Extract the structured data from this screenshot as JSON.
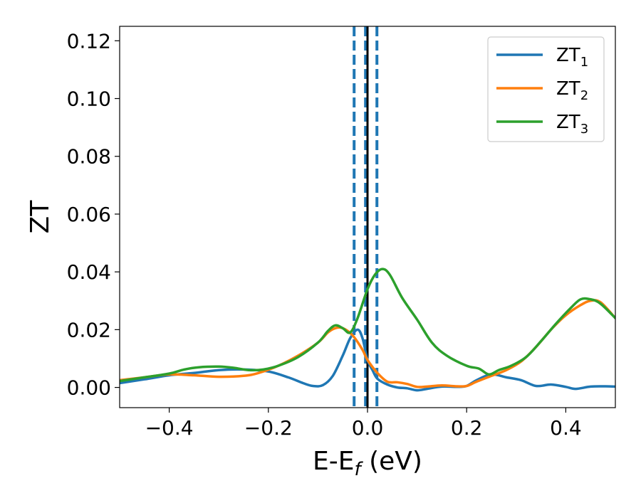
{
  "chart_data": {
    "type": "line",
    "title": "",
    "xlabel_main": "E-E",
    "xlabel_sub": "f",
    "xlabel_unit": " (eV)",
    "ylabel": "ZT",
    "xlim": [
      -0.5,
      0.5
    ],
    "ylim": [
      -0.007,
      0.125
    ],
    "xticks": [
      -0.4,
      -0.2,
      0.0,
      0.2,
      0.4
    ],
    "xtick_labels": [
      "−0.4",
      "−0.2",
      "0.0",
      "0.2",
      "0.4"
    ],
    "yticks": [
      0.0,
      0.02,
      0.04,
      0.06,
      0.08,
      0.1,
      0.12
    ],
    "ytick_labels": [
      "0.00",
      "0.02",
      "0.04",
      "0.06",
      "0.08",
      "0.10",
      "0.12"
    ],
    "grid": false,
    "legend_position": "top-right",
    "vlines": [
      {
        "x": 0.0,
        "style": "solid",
        "color": "#000000"
      },
      {
        "x": -0.027,
        "style": "dashed",
        "color": "#1f77b4"
      },
      {
        "x": -0.004,
        "style": "dashed",
        "color": "#1f77b4"
      },
      {
        "x": 0.019,
        "style": "dashed",
        "color": "#1f77b4"
      }
    ],
    "series": [
      {
        "name": "ZT",
        "subscript": "1",
        "color": "#1f77b4",
        "points": [
          [
            -0.5,
            0.0015
          ],
          [
            -0.45,
            0.0028
          ],
          [
            -0.4,
            0.0042
          ],
          [
            -0.35,
            0.005
          ],
          [
            -0.3,
            0.006
          ],
          [
            -0.25,
            0.0062
          ],
          [
            -0.2,
            0.0055
          ],
          [
            -0.16,
            0.0035
          ],
          [
            -0.13,
            0.0015
          ],
          [
            -0.11,
            0.0005
          ],
          [
            -0.09,
            0.0008
          ],
          [
            -0.07,
            0.004
          ],
          [
            -0.05,
            0.011
          ],
          [
            -0.035,
            0.017
          ],
          [
            -0.02,
            0.02
          ],
          [
            -0.01,
            0.017
          ],
          [
            0.0,
            0.0095
          ],
          [
            0.01,
            0.006
          ],
          [
            0.02,
            0.003
          ],
          [
            0.04,
            0.001
          ],
          [
            0.06,
            0.0
          ],
          [
            0.08,
            -0.0003
          ],
          [
            0.1,
            -0.001
          ],
          [
            0.12,
            -0.0005
          ],
          [
            0.15,
            0.0003
          ],
          [
            0.18,
            0.0002
          ],
          [
            0.2,
            0.0005
          ],
          [
            0.22,
            0.0025
          ],
          [
            0.25,
            0.0045
          ],
          [
            0.28,
            0.0035
          ],
          [
            0.31,
            0.0025
          ],
          [
            0.34,
            0.0005
          ],
          [
            0.37,
            0.001
          ],
          [
            0.4,
            0.0002
          ],
          [
            0.42,
            -0.0005
          ],
          [
            0.45,
            0.0003
          ],
          [
            0.48,
            0.0004
          ],
          [
            0.5,
            0.0003
          ]
        ]
      },
      {
        "name": "ZT",
        "subscript": "2",
        "color": "#ff7f0e",
        "points": [
          [
            -0.5,
            0.0025
          ],
          [
            -0.45,
            0.0035
          ],
          [
            -0.4,
            0.0045
          ],
          [
            -0.35,
            0.0042
          ],
          [
            -0.3,
            0.0037
          ],
          [
            -0.25,
            0.004
          ],
          [
            -0.22,
            0.005
          ],
          [
            -0.18,
            0.0075
          ],
          [
            -0.14,
            0.011
          ],
          [
            -0.1,
            0.0155
          ],
          [
            -0.08,
            0.019
          ],
          [
            -0.065,
            0.0205
          ],
          [
            -0.05,
            0.0205
          ],
          [
            -0.03,
            0.018
          ],
          [
            -0.01,
            0.013
          ],
          [
            0.0,
            0.0095
          ],
          [
            0.02,
            0.005
          ],
          [
            0.04,
            0.002
          ],
          [
            0.06,
            0.0018
          ],
          [
            0.08,
            0.0012
          ],
          [
            0.1,
            0.0002
          ],
          [
            0.12,
            0.0003
          ],
          [
            0.15,
            0.0007
          ],
          [
            0.18,
            0.0004
          ],
          [
            0.2,
            0.0005
          ],
          [
            0.22,
            0.002
          ],
          [
            0.25,
            0.004
          ],
          [
            0.28,
            0.006
          ],
          [
            0.31,
            0.009
          ],
          [
            0.34,
            0.014
          ],
          [
            0.37,
            0.02
          ],
          [
            0.4,
            0.025
          ],
          [
            0.43,
            0.0285
          ],
          [
            0.45,
            0.03
          ],
          [
            0.47,
            0.0295
          ],
          [
            0.5,
            0.024
          ]
        ]
      },
      {
        "name": "ZT",
        "subscript": "3",
        "color": "#2ca02c",
        "points": [
          [
            -0.5,
            0.0022
          ],
          [
            -0.45,
            0.0035
          ],
          [
            -0.4,
            0.0048
          ],
          [
            -0.37,
            0.0062
          ],
          [
            -0.34,
            0.007
          ],
          [
            -0.3,
            0.0072
          ],
          [
            -0.27,
            0.0068
          ],
          [
            -0.24,
            0.006
          ],
          [
            -0.21,
            0.0062
          ],
          [
            -0.18,
            0.0075
          ],
          [
            -0.14,
            0.0105
          ],
          [
            -0.1,
            0.0155
          ],
          [
            -0.08,
            0.0195
          ],
          [
            -0.065,
            0.0215
          ],
          [
            -0.05,
            0.0205
          ],
          [
            -0.035,
            0.019
          ],
          [
            -0.02,
            0.024
          ],
          [
            0.0,
            0.034
          ],
          [
            0.015,
            0.039
          ],
          [
            0.03,
            0.041
          ],
          [
            0.045,
            0.039
          ],
          [
            0.07,
            0.031
          ],
          [
            0.1,
            0.0235
          ],
          [
            0.13,
            0.0155
          ],
          [
            0.16,
            0.011
          ],
          [
            0.2,
            0.0075
          ],
          [
            0.225,
            0.0065
          ],
          [
            0.245,
            0.0045
          ],
          [
            0.265,
            0.006
          ],
          [
            0.29,
            0.0075
          ],
          [
            0.32,
            0.0105
          ],
          [
            0.35,
            0.016
          ],
          [
            0.38,
            0.022
          ],
          [
            0.41,
            0.0275
          ],
          [
            0.43,
            0.0305
          ],
          [
            0.45,
            0.0305
          ],
          [
            0.47,
            0.029
          ],
          [
            0.5,
            0.024
          ]
        ]
      }
    ]
  }
}
